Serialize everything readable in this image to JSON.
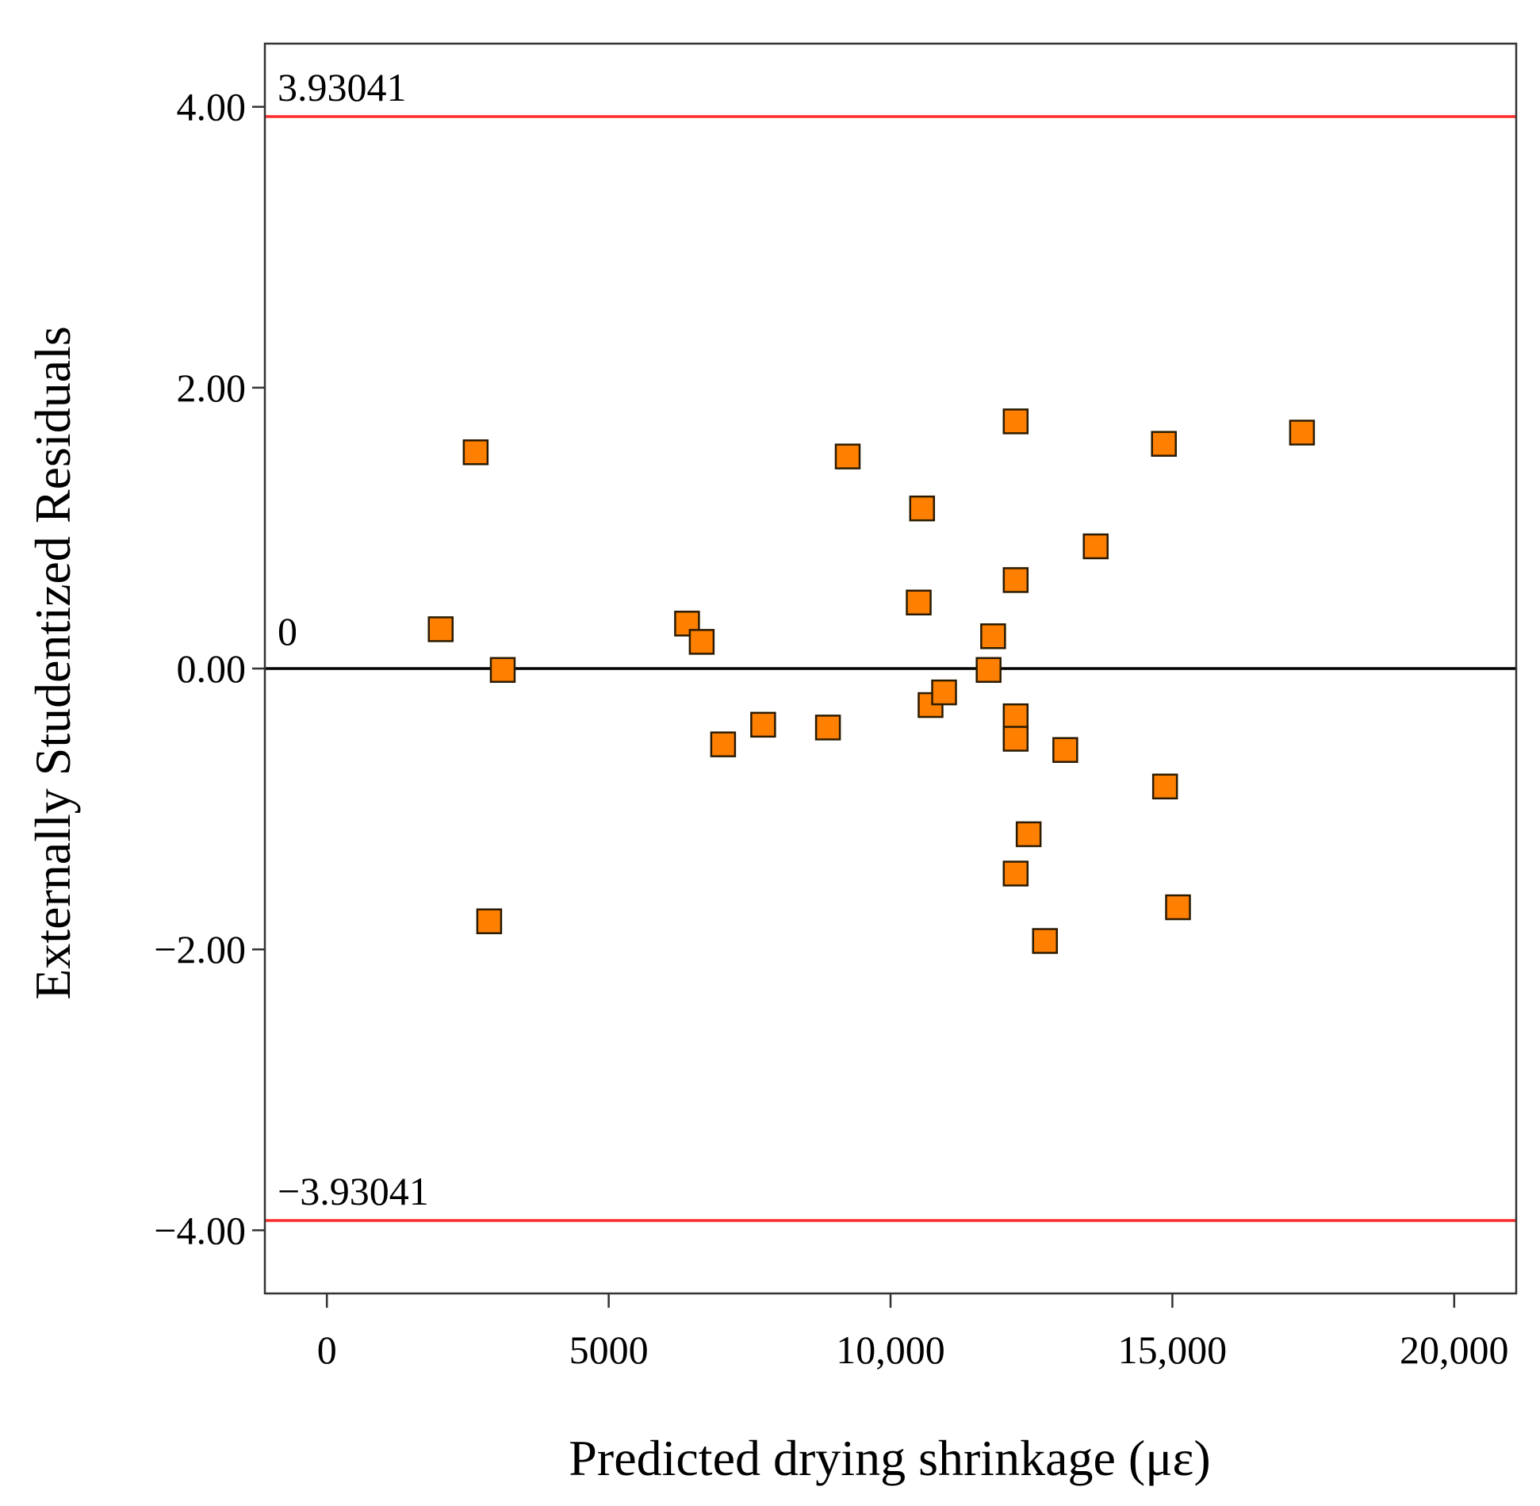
{
  "chart_data": {
    "type": "scatter",
    "title": "",
    "xlabel": "Predicted drying shrinkage (με)",
    "ylabel": "Externally Studentized Residuals",
    "xlim": [
      -1100,
      21100
    ],
    "ylim": [
      -4.45,
      4.45
    ],
    "xticks": [
      0,
      5000,
      10000,
      15000,
      20000
    ],
    "xtick_labels": [
      "0",
      "5000",
      "10,000",
      "15,000",
      "20,000"
    ],
    "yticks": [
      4,
      2,
      0,
      -2,
      -4
    ],
    "ytick_labels": [
      "4.00",
      "2.00",
      "0.00",
      "−2.00",
      "−4.00"
    ],
    "grid": false,
    "reference_lines": [
      {
        "name": "upper-limit",
        "value": 3.93041,
        "label": "3.93041",
        "color": "#ff2b2b"
      },
      {
        "name": "zero-line",
        "value": 0,
        "label": "0",
        "color": "#000000"
      },
      {
        "name": "lower-limit",
        "value": -3.93041,
        "label": "−3.93041",
        "color": "#ff2b2b"
      }
    ],
    "marker": {
      "shape": "square",
      "fill": "#ff8000",
      "stroke": "#2a1a00"
    },
    "points": [
      {
        "x": 2020,
        "y": 0.28
      },
      {
        "x": 2640,
        "y": 1.54
      },
      {
        "x": 2880,
        "y": -1.8
      },
      {
        "x": 3120,
        "y": -0.01
      },
      {
        "x": 6390,
        "y": 0.32
      },
      {
        "x": 6650,
        "y": 0.19
      },
      {
        "x": 7030,
        "y": -0.54
      },
      {
        "x": 7740,
        "y": -0.4
      },
      {
        "x": 8890,
        "y": -0.42
      },
      {
        "x": 9240,
        "y": 1.51
      },
      {
        "x": 10500,
        "y": 0.47
      },
      {
        "x": 10560,
        "y": 1.14
      },
      {
        "x": 10710,
        "y": -0.26
      },
      {
        "x": 10950,
        "y": -0.17
      },
      {
        "x": 11740,
        "y": -0.01
      },
      {
        "x": 11820,
        "y": 0.23
      },
      {
        "x": 12220,
        "y": 1.76
      },
      {
        "x": 12220,
        "y": 0.63
      },
      {
        "x": 12220,
        "y": -0.34
      },
      {
        "x": 12220,
        "y": -0.5
      },
      {
        "x": 12220,
        "y": -1.46
      },
      {
        "x": 12450,
        "y": -1.18
      },
      {
        "x": 12740,
        "y": -1.94
      },
      {
        "x": 13100,
        "y": -0.58
      },
      {
        "x": 13640,
        "y": 0.87
      },
      {
        "x": 14850,
        "y": 1.6
      },
      {
        "x": 14870,
        "y": -0.84
      },
      {
        "x": 15100,
        "y": -1.7
      },
      {
        "x": 17300,
        "y": 1.68
      }
    ]
  }
}
